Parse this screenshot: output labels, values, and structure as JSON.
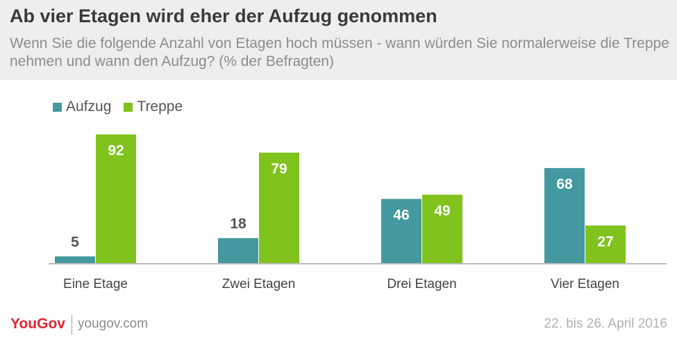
{
  "header": {
    "title": "Ab vier Etagen wird eher der Aufzug genommen",
    "subtitle": "Wenn Sie die folgende Anzahl von Etagen hoch müssen - wann würden Sie normalerweise die Treppe nehmen und wann den Aufzug? (% der Befragten)"
  },
  "chart_data": {
    "type": "bar",
    "title": "Ab vier Etagen wird eher der Aufzug genommen",
    "subtitle": "Wenn Sie die folgende Anzahl von Etagen hoch müssen - wann würden Sie normalerweise die Treppe nehmen und wann den Aufzug? (% der Befragten)",
    "categories": [
      "Eine Etage",
      "Zwei Etagen",
      "Drei Etagen",
      "Vier Etagen"
    ],
    "series": [
      {
        "name": "Aufzug",
        "values": [
          5,
          18,
          46,
          68
        ],
        "color": "#43999f"
      },
      {
        "name": "Treppe",
        "values": [
          92,
          79,
          49,
          27
        ],
        "color": "#7fc31c"
      }
    ],
    "ylim": [
      0,
      100
    ],
    "grid": false,
    "legend_position": "top-left",
    "data_labels": true
  },
  "colors": {
    "header_bg": "#eeeeee",
    "label_inside": "#ffffff",
    "label_outside": "#555555",
    "baseline": "#bcbcbc",
    "brand": "#e0262f"
  },
  "footer": {
    "logo": "YouGov",
    "url": "yougov.com",
    "date": "22. bis 26. April 2016"
  }
}
